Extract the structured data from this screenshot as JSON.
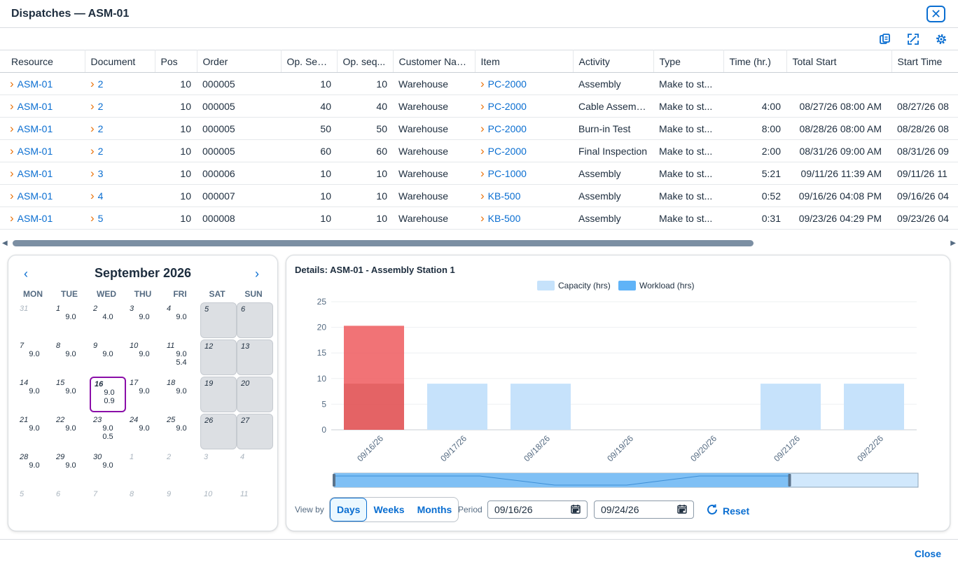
{
  "dialog": {
    "title": "Dispatches — ASM-01",
    "close_label": "Close"
  },
  "toolbar": {
    "icons": [
      "export-icon",
      "fullscreen-icon",
      "settings-icon"
    ]
  },
  "table": {
    "columns": [
      "Resource",
      "Document",
      "Pos",
      "Order",
      "Op. Sequ.",
      "Op. seq...",
      "Customer Name",
      "Item",
      "Activity",
      "Type",
      "Time (hr.)",
      "Total Start",
      "Start Time"
    ],
    "rows": [
      {
        "resource": "ASM-01",
        "document": "2",
        "pos": "10",
        "order": "000005",
        "op_sequ": "10",
        "op_seq2": "10",
        "customer": "Warehouse",
        "item": "PC-2000",
        "activity": "Assembly",
        "type": "Make to st...",
        "time": "",
        "total_start": "",
        "start_time": ""
      },
      {
        "resource": "ASM-01",
        "document": "2",
        "pos": "10",
        "order": "000005",
        "op_sequ": "40",
        "op_seq2": "40",
        "customer": "Warehouse",
        "item": "PC-2000",
        "activity": "Cable Assembly",
        "type": "Make to st...",
        "time": "4:00",
        "total_start": "08/27/26 08:00 AM",
        "start_time": "08/27/26 08"
      },
      {
        "resource": "ASM-01",
        "document": "2",
        "pos": "10",
        "order": "000005",
        "op_sequ": "50",
        "op_seq2": "50",
        "customer": "Warehouse",
        "item": "PC-2000",
        "activity": "Burn-in Test",
        "type": "Make to st...",
        "time": "8:00",
        "total_start": "08/28/26 08:00 AM",
        "start_time": "08/28/26 08"
      },
      {
        "resource": "ASM-01",
        "document": "2",
        "pos": "10",
        "order": "000005",
        "op_sequ": "60",
        "op_seq2": "60",
        "customer": "Warehouse",
        "item": "PC-2000",
        "activity": "Final Inspection",
        "type": "Make to st...",
        "time": "2:00",
        "total_start": "08/31/26 09:00 AM",
        "start_time": "08/31/26 09"
      },
      {
        "resource": "ASM-01",
        "document": "3",
        "pos": "10",
        "order": "000006",
        "op_sequ": "10",
        "op_seq2": "10",
        "customer": "Warehouse",
        "item": "PC-1000",
        "activity": "Assembly",
        "type": "Make to st...",
        "time": "5:21",
        "total_start": "09/11/26 11:39 AM",
        "start_time": "09/11/26 11"
      },
      {
        "resource": "ASM-01",
        "document": "4",
        "pos": "10",
        "order": "000007",
        "op_sequ": "10",
        "op_seq2": "10",
        "customer": "Warehouse",
        "item": "KB-500",
        "activity": "Assembly",
        "type": "Make to st...",
        "time": "0:52",
        "total_start": "09/16/26 04:08 PM",
        "start_time": "09/16/26 04"
      },
      {
        "resource": "ASM-01",
        "document": "5",
        "pos": "10",
        "order": "000008",
        "op_sequ": "10",
        "op_seq2": "10",
        "customer": "Warehouse",
        "item": "KB-500",
        "activity": "Assembly",
        "type": "Make to st...",
        "time": "0:31",
        "total_start": "09/23/26 04:29 PM",
        "start_time": "09/23/26 04"
      }
    ]
  },
  "calendar": {
    "month_label": "September 2026",
    "weekdays": [
      "MON",
      "TUE",
      "WED",
      "THU",
      "FRI",
      "SAT",
      "SUN"
    ],
    "selected_day": "16",
    "weeks": [
      [
        {
          "d": "31",
          "other": true
        },
        {
          "d": "1",
          "v": [
            "9.0"
          ]
        },
        {
          "d": "2",
          "v": [
            "4.0"
          ]
        },
        {
          "d": "3",
          "v": [
            "9.0"
          ]
        },
        {
          "d": "4",
          "v": [
            "9.0"
          ]
        },
        {
          "d": "5",
          "we": true
        },
        {
          "d": "6",
          "we": true
        }
      ],
      [
        {
          "d": "7",
          "v": [
            "9.0"
          ]
        },
        {
          "d": "8",
          "v": [
            "9.0"
          ]
        },
        {
          "d": "9",
          "v": [
            "9.0"
          ]
        },
        {
          "d": "10",
          "v": [
            "9.0"
          ]
        },
        {
          "d": "11",
          "v": [
            "9.0",
            "5.4"
          ]
        },
        {
          "d": "12",
          "we": true
        },
        {
          "d": "13",
          "we": true
        }
      ],
      [
        {
          "d": "14",
          "v": [
            "9.0"
          ]
        },
        {
          "d": "15",
          "v": [
            "9.0"
          ]
        },
        {
          "d": "16",
          "v": [
            "9.0",
            "0.9"
          ],
          "sel": true
        },
        {
          "d": "17",
          "v": [
            "9.0"
          ]
        },
        {
          "d": "18",
          "v": [
            "9.0"
          ]
        },
        {
          "d": "19",
          "we": true
        },
        {
          "d": "20",
          "we": true
        }
      ],
      [
        {
          "d": "21",
          "v": [
            "9.0"
          ]
        },
        {
          "d": "22",
          "v": [
            "9.0"
          ]
        },
        {
          "d": "23",
          "v": [
            "9.0",
            "0.5"
          ]
        },
        {
          "d": "24",
          "v": [
            "9.0"
          ]
        },
        {
          "d": "25",
          "v": [
            "9.0"
          ]
        },
        {
          "d": "26",
          "we": true
        },
        {
          "d": "27",
          "we": true
        }
      ],
      [
        {
          "d": "28",
          "v": [
            "9.0"
          ]
        },
        {
          "d": "29",
          "v": [
            "9.0"
          ]
        },
        {
          "d": "30",
          "v": [
            "9.0"
          ]
        },
        {
          "d": "1",
          "other": true
        },
        {
          "d": "2",
          "other": true
        },
        {
          "d": "3",
          "other": true
        },
        {
          "d": "4",
          "other": true
        }
      ],
      [
        {
          "d": "5",
          "other": true
        },
        {
          "d": "6",
          "other": true
        },
        {
          "d": "7",
          "other": true
        },
        {
          "d": "8",
          "other": true
        },
        {
          "d": "9",
          "other": true
        },
        {
          "d": "10",
          "other": true
        },
        {
          "d": "11",
          "other": true
        }
      ]
    ]
  },
  "details": {
    "title": "Details: ASM-01 - Assembly Station 1",
    "view_by_label": "View by",
    "view_buttons": [
      "Days",
      "Weeks",
      "Months"
    ],
    "active_view": "Days",
    "period_label": "Period",
    "period_from": "09/16/26",
    "period_to": "09/24/26",
    "reset_label": "Reset"
  },
  "chart_data": {
    "type": "bar",
    "categories": [
      "09/16/26",
      "09/17/26",
      "09/18/26",
      "09/19/26",
      "09/20/26",
      "09/21/26",
      "09/22/26"
    ],
    "series": [
      {
        "name": "Capacity (hrs)",
        "values": [
          9,
          9,
          9,
          0,
          0,
          9,
          9
        ],
        "color": "#c6e2fb"
      },
      {
        "name": "Workload (hrs)",
        "values": [
          20.3,
          0,
          0,
          0,
          0,
          0,
          0
        ],
        "color": "#ee5a5e"
      }
    ],
    "ylim": [
      0,
      25
    ],
    "yticks": [
      0,
      5,
      10,
      15,
      20,
      25
    ],
    "legend_position": "top-center",
    "grid": true,
    "workload_legend_color": "#60b3f7",
    "overview_selected_fraction": 0.78
  }
}
